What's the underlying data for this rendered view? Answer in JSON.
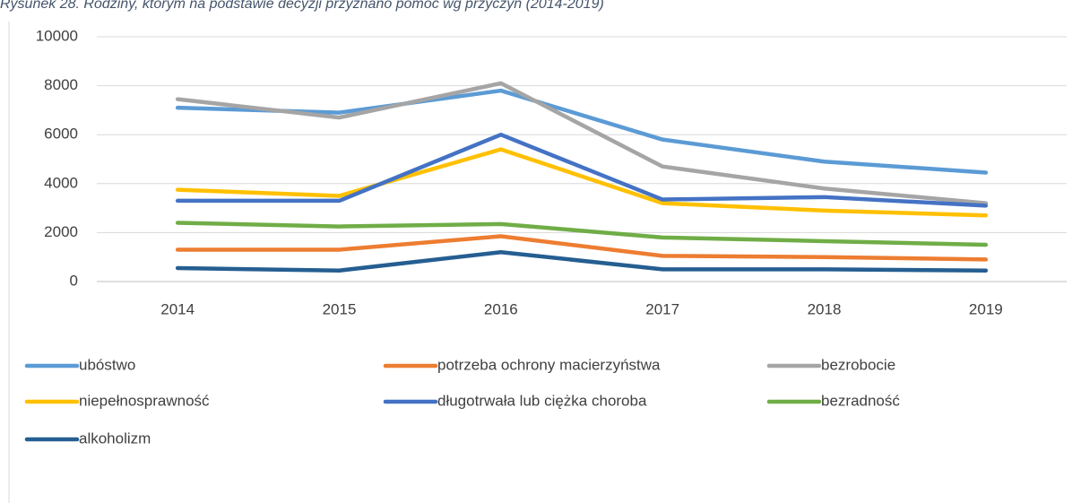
{
  "chart_data": {
    "type": "line",
    "title": "Rysunek 28. Rodziny, którym na podstawie decyzji przyznano pomoc wg przyczyn (2014-2019)",
    "categories": [
      "2014",
      "2015",
      "2016",
      "2017",
      "2018",
      "2019"
    ],
    "series": [
      {
        "name": "ubóstwo",
        "color": "#5b9bd5",
        "values": [
          7100,
          6900,
          7800,
          5800,
          4900,
          4450
        ]
      },
      {
        "name": "potrzeba ochrony macierzyństwa",
        "color": "#ed7d31",
        "values": [
          1300,
          1300,
          1850,
          1050,
          1000,
          900
        ]
      },
      {
        "name": "bezrobocie",
        "color": "#a5a5a5",
        "values": [
          7450,
          6700,
          8100,
          4700,
          3800,
          3200
        ]
      },
      {
        "name": "niepełnosprawność",
        "color": "#ffc000",
        "values": [
          3750,
          3500,
          5400,
          3200,
          2900,
          2700
        ]
      },
      {
        "name": "długotrwała lub ciężka choroba",
        "color": "#4472c4",
        "values": [
          3300,
          3300,
          6000,
          3350,
          3450,
          3100
        ]
      },
      {
        "name": "bezradność",
        "color": "#70ad47",
        "values": [
          2400,
          2250,
          2350,
          1800,
          1650,
          1500
        ]
      },
      {
        "name": "alkoholizm",
        "color": "#255e91",
        "values": [
          550,
          450,
          1200,
          500,
          500,
          450
        ]
      }
    ],
    "ylim": [
      0,
      10000
    ],
    "yticks": [
      0,
      2000,
      4000,
      6000,
      8000,
      10000
    ],
    "grid": true,
    "legend": "bottom"
  }
}
